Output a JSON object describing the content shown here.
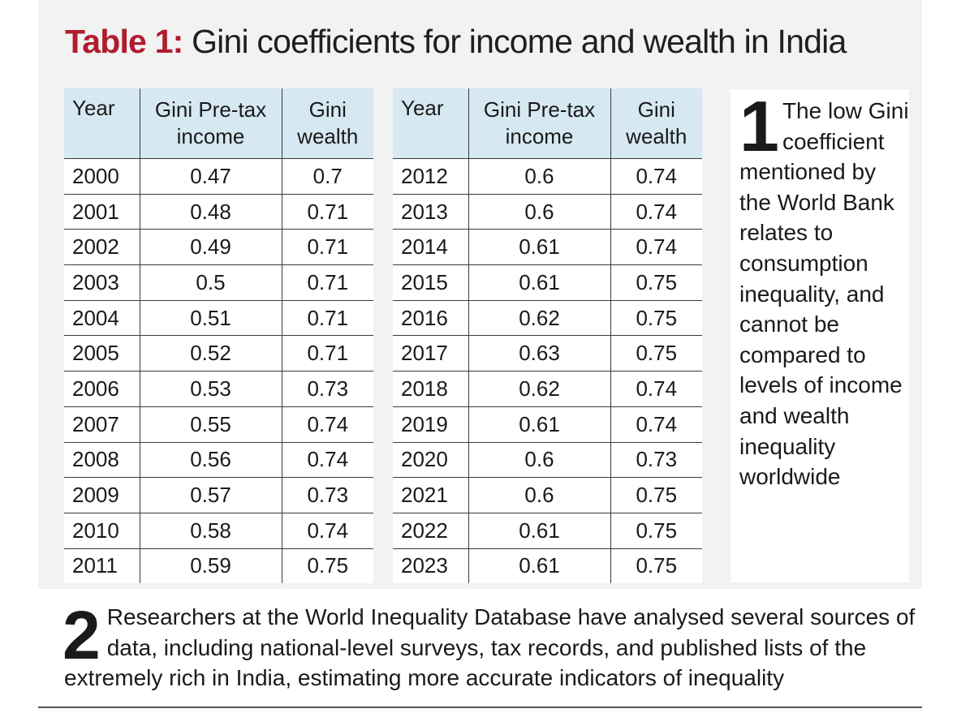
{
  "title": {
    "label": "Table 1:",
    "text": " Gini coefficients for income and wealth in India"
  },
  "table": {
    "headers": [
      "Year",
      "Gini Pre-tax income",
      "Gini wealth"
    ],
    "left_rows": [
      [
        "2000",
        "0.47",
        "0.7"
      ],
      [
        "2001",
        "0.48",
        "0.71"
      ],
      [
        "2002",
        "0.49",
        "0.71"
      ],
      [
        "2003",
        "0.5",
        "0.71"
      ],
      [
        "2004",
        "0.51",
        "0.71"
      ],
      [
        "2005",
        "0.52",
        "0.71"
      ],
      [
        "2006",
        "0.53",
        "0.73"
      ],
      [
        "2007",
        "0.55",
        "0.74"
      ],
      [
        "2008",
        "0.56",
        "0.74"
      ],
      [
        "2009",
        "0.57",
        "0.73"
      ],
      [
        "2010",
        "0.58",
        "0.74"
      ],
      [
        "2011",
        "0.59",
        "0.75"
      ]
    ],
    "right_rows": [
      [
        "2012",
        "0.6",
        "0.74"
      ],
      [
        "2013",
        "0.6",
        "0.74"
      ],
      [
        "2014",
        "0.61",
        "0.74"
      ],
      [
        "2015",
        "0.61",
        "0.75"
      ],
      [
        "2016",
        "0.62",
        "0.75"
      ],
      [
        "2017",
        "0.63",
        "0.75"
      ],
      [
        "2018",
        "0.62",
        "0.74"
      ],
      [
        "2019",
        "0.61",
        "0.74"
      ],
      [
        "2020",
        "0.6",
        "0.73"
      ],
      [
        "2021",
        "0.6",
        "0.75"
      ],
      [
        "2022",
        "0.61",
        "0.75"
      ],
      [
        "2023",
        "0.61",
        "0.75"
      ]
    ]
  },
  "notes": {
    "note1": {
      "number": "1",
      "text": "The low Gini coefficient mentioned by the World Bank relates to consumption inequality, and cannot be compared to levels of income and wealth inequality worldwide"
    },
    "note2": {
      "number": "2",
      "text": "Researchers at the World Inequality Database have analysed several sources of data, including national-level surveys, tax records, and published lists of the extremely rich in India, estimating more accurate indicators of inequality"
    }
  },
  "colors": {
    "title_accent": "#b01c2e",
    "header_bg": "#d6e8f2",
    "panel_bg": "#f2f2f2"
  }
}
